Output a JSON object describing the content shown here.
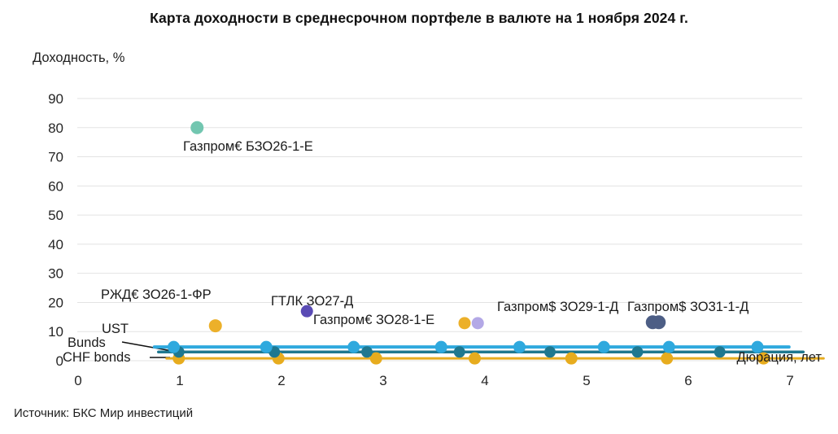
{
  "header": {
    "title": "Карта доходности в среднесрочном портфеле в валюте на 1 ноября 2024 г."
  },
  "footer": {
    "source": "Источник: БКС Мир инвестиций"
  },
  "chart_data": {
    "type": "scatter",
    "title": "Карта доходности в среднесрочном портфеле в валюте на 1 ноября 2024 г.",
    "xlabel": "Дюрация, лет",
    "ylabel": "Доходность, %",
    "xlim": [
      0,
      7
    ],
    "ylim": [
      0,
      90
    ],
    "x_ticks": [
      0,
      1,
      2,
      3,
      4,
      5,
      6,
      7
    ],
    "y_ticks": [
      90,
      80,
      70,
      60,
      50,
      40,
      30,
      20,
      10,
      0
    ],
    "grid": "horizontal",
    "colors": {
      "teal": "#72C6B0",
      "yellow": "#ECB02A",
      "purple": "#5A4BB5",
      "lavender": "#B3A8E6",
      "navy": "#4D5E85",
      "ust_blue": "#2FA9DE",
      "bunds_teal": "#1F7890",
      "chf_gold": "#E7AC1E",
      "grid_gray": "#E3E3E3"
    },
    "bonds": [
      {
        "label": "Газпром€ БЗО26-1-Е",
        "duration": 1.17,
        "yield": 80.0,
        "color": "#72C6B0",
        "r": 8
      },
      {
        "label": "РЖД€ ЗО26-1-ФР",
        "duration": 1.35,
        "yield": 12.0,
        "color": "#ECB02A",
        "r": 8
      },
      {
        "label": "ГТЛК ЗО27-Д",
        "duration": 2.25,
        "yield": 17.0,
        "color": "#5A4BB5",
        "r": 7.5
      },
      {
        "label": "Газпром€ ЗО28-1-Е",
        "duration": 3.8,
        "yield": 12.9,
        "color": "#ECB02A",
        "r": 7.5
      },
      {
        "label": "",
        "duration": 3.93,
        "yield": 12.9,
        "color": "#B3A8E6",
        "r": 7.5
      },
      {
        "label": "Газпром$ ЗО29-1-Д",
        "duration": 5.65,
        "yield": 13.2,
        "color": "#4D5E85",
        "r": 8.5
      },
      {
        "label": "Газпром$ ЗО31-1-Д",
        "duration": 5.71,
        "yield": 13.2,
        "color": "#4D5E85",
        "r": 8.5
      }
    ],
    "benchmarks": [
      {
        "label": "UST",
        "yield": 4.7,
        "color": "#2FA9DE",
        "line_width": 4,
        "line_span": [
          0.75,
          6.99
        ],
        "markers": [
          0.94,
          1.85,
          2.71,
          3.57,
          4.34,
          5.17,
          5.81,
          6.68
        ],
        "marker_r": 7.5
      },
      {
        "label": "Bunds",
        "yield": 3.0,
        "color": "#1F7890",
        "line_width": 3.5,
        "line_span": [
          0.79,
          7.13
        ],
        "markers": [
          0.99,
          1.93,
          2.84,
          3.75,
          4.64,
          5.5,
          6.31
        ],
        "marker_r": 7
      },
      {
        "label": "CHF bonds",
        "yield": 0.8,
        "color": "#E7AC1E",
        "line_width": 3,
        "line_span": [
          0.87,
          7.33
        ],
        "markers": [
          0.99,
          1.97,
          2.93,
          3.9,
          4.85,
          5.79,
          6.74
        ],
        "marker_r": 7.5
      }
    ]
  }
}
